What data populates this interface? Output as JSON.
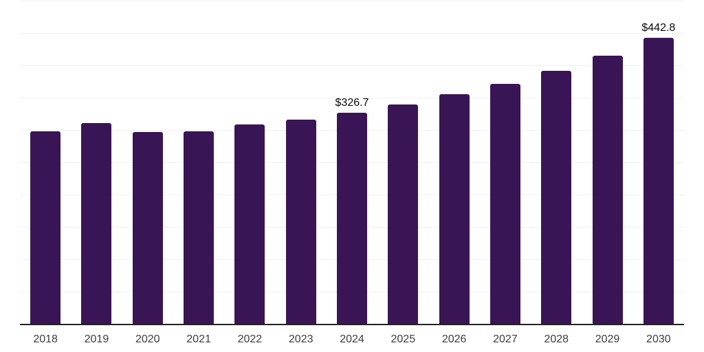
{
  "chart_data": {
    "type": "bar",
    "categories": [
      "2018",
      "2019",
      "2020",
      "2021",
      "2022",
      "2023",
      "2024",
      "2025",
      "2026",
      "2027",
      "2028",
      "2029",
      "2030"
    ],
    "values": [
      298.2,
      310.5,
      297.1,
      298.3,
      308.2,
      315.7,
      326.7,
      339.0,
      355.0,
      371.0,
      392.0,
      415.0,
      442.8
    ],
    "data_labels": {
      "2024": "$326.7",
      "2030": "$442.8"
    },
    "title": "",
    "xlabel": "",
    "ylabel": "",
    "ylim": [
      0,
      500
    ],
    "grid_step": 50,
    "grid": "horizontal-only",
    "y_tick_labels_visible": false,
    "legend": "none",
    "colors": {
      "bar": "#3a1555",
      "gridline": "#f0f0f3",
      "axis_line": "#222222",
      "x_tick_label": "#3d3d3d",
      "data_label": "#0a0a0a",
      "background": "#ffffff"
    }
  }
}
